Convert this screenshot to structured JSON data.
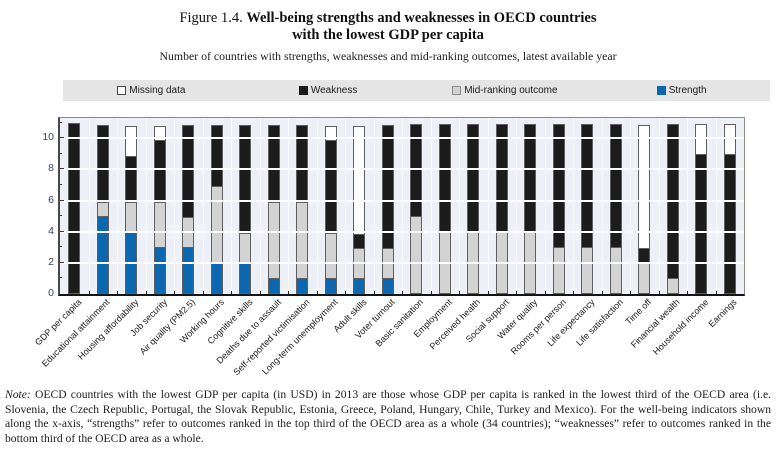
{
  "figure": {
    "label": "Figure 1.4.",
    "title_line1_bold": "Well-being strengths and weaknesses in OECD countries",
    "title_line2_bold": "with the lowest GDP per capita",
    "subtitle": "Number of countries with strengths, weaknesses and mid-ranking outcomes, latest available year"
  },
  "legend": {
    "items": [
      {
        "key": "missing",
        "label": "Missing data",
        "color": "#ffffff",
        "border": "#444444"
      },
      {
        "key": "weakness",
        "label": "Weakness",
        "color": "#1a1a1a",
        "border": "#1a1a1a"
      },
      {
        "key": "mid",
        "label": "Mid-ranking outcome",
        "color": "#d3d3d3",
        "border": "#8c8c8c"
      },
      {
        "key": "strength",
        "label": "Strength",
        "color": "#0b67af",
        "border": "#0b67af"
      }
    ]
  },
  "chart_data": {
    "type": "bar",
    "stacked": true,
    "title": "Well-being strengths and weaknesses in OECD countries with the lowest GDP per capita",
    "subtitle": "Number of countries with strengths, weaknesses and mid-ranking outcomes, latest available year",
    "xlabel": "",
    "ylabel": "",
    "ylim": [
      0,
      11.3
    ],
    "yticks": [
      0,
      2,
      4,
      6,
      8,
      10
    ],
    "grid": "horizontal white lines at even values",
    "legend_position": "top band",
    "stack_order_bottom_to_top": [
      "Strength",
      "Mid-ranking outcome",
      "Weakness",
      "Missing data"
    ],
    "categories": [
      "GDP per capita",
      "Educational attainment",
      "Housing affordability",
      "Job security",
      "Air quality (PM2.5)",
      "Working hours",
      "Cognitive skills",
      "Deaths due to assault",
      "Self-reported victimisation",
      "Long-term unemployment",
      "Adult skills",
      "Voter turnout",
      "Basic sanitation",
      "Employment",
      "Perceived health",
      "Social support",
      "Water quality",
      "Rooms per person",
      "Life expectancy",
      "Life satisfaction",
      "Time off",
      "Financial wealth",
      "Household income",
      "Earnings"
    ],
    "series": [
      {
        "name": "Strength",
        "color": "#0b67af",
        "values": [
          0,
          5,
          4,
          3,
          3,
          2,
          2,
          1,
          1,
          1,
          1,
          1,
          0,
          0,
          0,
          0,
          0,
          0,
          0,
          0,
          0,
          0,
          0,
          0
        ]
      },
      {
        "name": "Mid-ranking outcome",
        "color": "#d3d3d3",
        "values": [
          0,
          1,
          2,
          3,
          2,
          5,
          2,
          5,
          5,
          3,
          2,
          2,
          5,
          4,
          4,
          4,
          4,
          3,
          3,
          3,
          2,
          1,
          0,
          0
        ]
      },
      {
        "name": "Weakness",
        "color": "#1c1c1c",
        "values": [
          11,
          5,
          3,
          4,
          6,
          4,
          7,
          5,
          5,
          6,
          1,
          8,
          6,
          7,
          7,
          7,
          7,
          8,
          8,
          8,
          1,
          10,
          9,
          9
        ]
      },
      {
        "name": "Missing data",
        "color": "#ffffff",
        "values": [
          0,
          0,
          2,
          1,
          0,
          0,
          0,
          0,
          0,
          1,
          7,
          0,
          0,
          0,
          0,
          0,
          0,
          0,
          0,
          0,
          8,
          0,
          2,
          2
        ]
      }
    ]
  },
  "note": {
    "label": "Note:",
    "text": " OECD countries with the lowest GDP per capita (in USD) in 2013 are those whose GDP per capita is ranked in the lowest third of the OECD area (i.e. Slovenia, the Czech Republic, Portugal, the Slovak Republic, Estonia, Greece, Poland, Hungary, Chile, Turkey and Mexico). For the well-being indicators shown along the x-axis, “strengths” refer to outcomes ranked in the top third of the OECD area as a whole (34 countries); “weaknesses” refer to outcomes ranked in the bottom third of the OECD area as a whole."
  }
}
